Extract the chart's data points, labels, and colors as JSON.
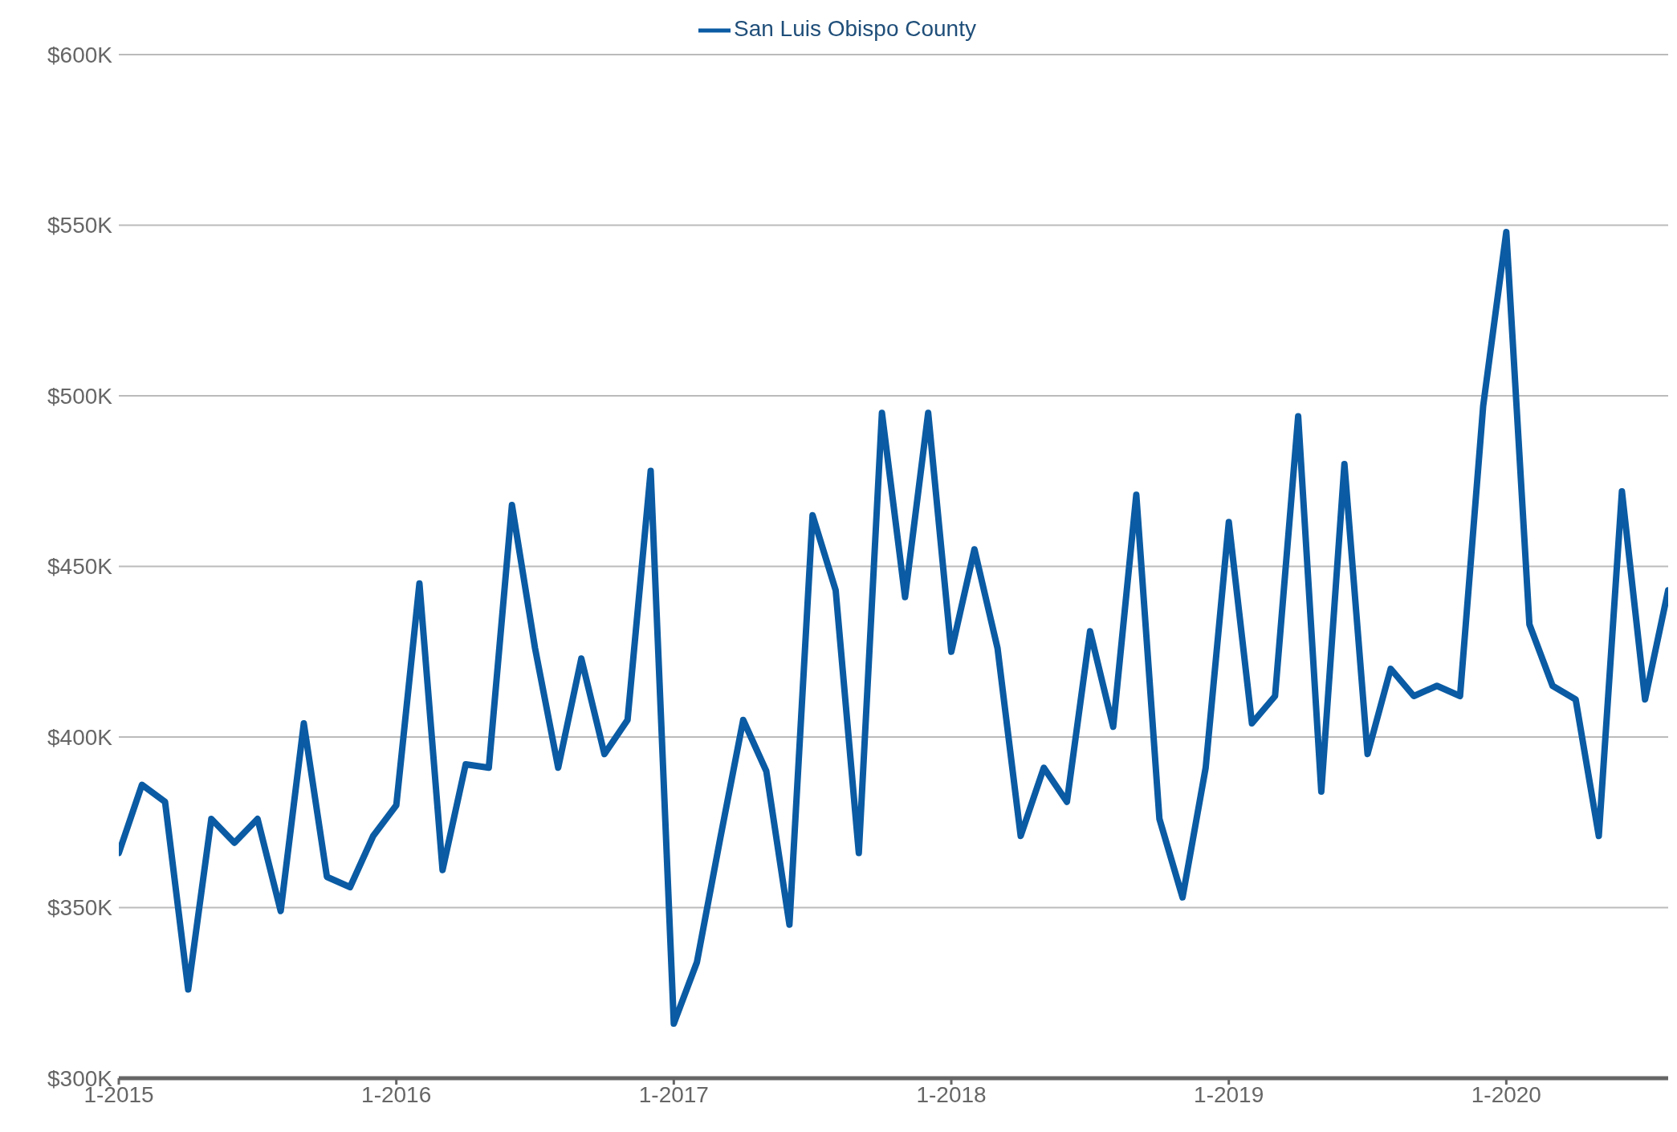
{
  "chart_data": {
    "type": "line",
    "legend": "top",
    "grid": "y",
    "marker": "none",
    "line_style": "solid",
    "x": [
      "2015-01",
      "2015-02",
      "2015-03",
      "2015-04",
      "2015-05",
      "2015-06",
      "2015-07",
      "2015-08",
      "2015-09",
      "2015-10",
      "2015-11",
      "2015-12",
      "2016-01",
      "2016-02",
      "2016-03",
      "2016-04",
      "2016-05",
      "2016-06",
      "2016-07",
      "2016-08",
      "2016-09",
      "2016-10",
      "2016-11",
      "2016-12",
      "2017-01",
      "2017-02",
      "2017-03",
      "2017-04",
      "2017-05",
      "2017-06",
      "2017-07",
      "2017-08",
      "2017-09",
      "2017-10",
      "2017-11",
      "2017-12",
      "2018-01",
      "2018-02",
      "2018-03",
      "2018-04",
      "2018-05",
      "2018-06",
      "2018-07",
      "2018-08",
      "2018-09",
      "2018-10",
      "2018-11",
      "2018-12",
      "2019-01",
      "2019-02",
      "2019-03",
      "2019-04",
      "2019-05",
      "2019-06",
      "2019-07",
      "2019-08",
      "2019-09",
      "2019-10",
      "2019-11",
      "2019-12",
      "2020-01",
      "2020-02",
      "2020-03",
      "2020-04",
      "2020-05",
      "2020-06",
      "2020-07",
      "2020-08"
    ],
    "series": [
      {
        "name": "San Luis Obispo County",
        "color": "#0a5ba3",
        "values": [
          366000,
          386000,
          381000,
          326000,
          376000,
          369000,
          376000,
          349000,
          404000,
          359000,
          356000,
          371000,
          380000,
          445000,
          361000,
          392000,
          391000,
          468000,
          426000,
          391000,
          423000,
          395000,
          405000,
          478000,
          316000,
          334000,
          370000,
          405000,
          390000,
          345000,
          465000,
          443000,
          366000,
          495000,
          441000,
          495000,
          425000,
          455000,
          426000,
          371000,
          391000,
          381000,
          431000,
          403000,
          471000,
          376000,
          353000,
          391000,
          463000,
          404000,
          412000,
          494000,
          384000,
          480000,
          395000,
          420000,
          412000,
          415000,
          412000,
          497000,
          548000,
          433000,
          415000,
          411000,
          371000,
          472000,
          411000,
          443000
        ]
      }
    ],
    "xlim": [
      "2015-01",
      "2020-08"
    ],
    "xticks": [
      {
        "value": "2015-01",
        "label": "1-2015"
      },
      {
        "value": "2016-01",
        "label": "1-2016"
      },
      {
        "value": "2017-01",
        "label": "1-2017"
      },
      {
        "value": "2018-01",
        "label": "1-2018"
      },
      {
        "value": "2019-01",
        "label": "1-2019"
      },
      {
        "value": "2020-01",
        "label": "1-2020"
      }
    ],
    "ylim": [
      300000,
      600000
    ],
    "yticks": [
      {
        "value": 300000,
        "label": "$300K"
      },
      {
        "value": 350000,
        "label": "$350K"
      },
      {
        "value": 400000,
        "label": "$400K"
      },
      {
        "value": 450000,
        "label": "$450K"
      },
      {
        "value": 500000,
        "label": "$500K"
      },
      {
        "value": 550000,
        "label": "$550K"
      },
      {
        "value": 600000,
        "label": "$600K"
      }
    ]
  }
}
